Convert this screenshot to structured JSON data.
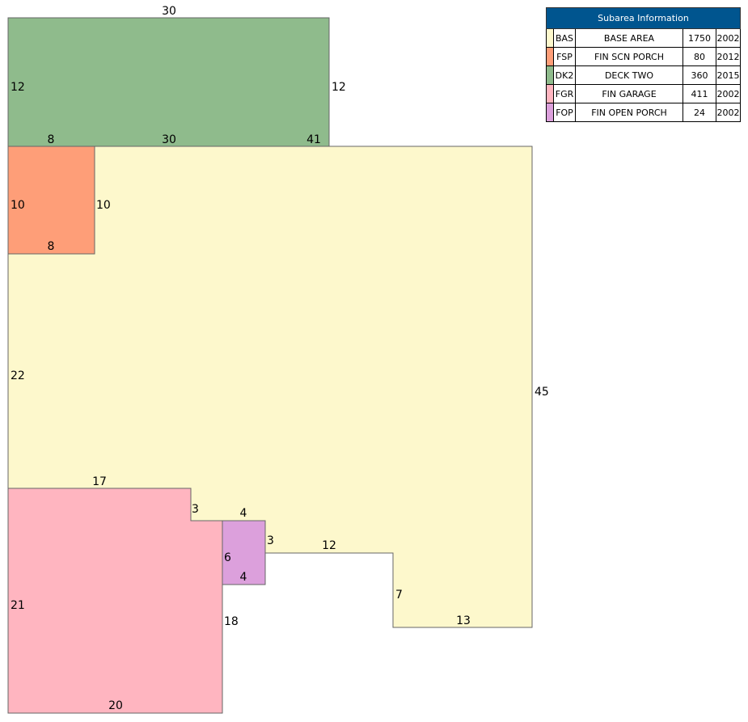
{
  "legend": {
    "title": "Subarea Information",
    "rows": [
      {
        "code": "BAS",
        "name": "BASE AREA",
        "area": "1750",
        "year": "2002",
        "color": "#fdf8cc"
      },
      {
        "code": "FSP",
        "name": "FIN SCN PORCH",
        "area": "80",
        "year": "2012",
        "color": "#fe9e78"
      },
      {
        "code": "DK2",
        "name": "DECK TWO",
        "area": "360",
        "year": "2015",
        "color": "#8fbb8c"
      },
      {
        "code": "FGR",
        "name": "FIN GARAGE",
        "area": "411",
        "year": "2002",
        "color": "#ffb5c0"
      },
      {
        "code": "FOP",
        "name": "FIN OPEN PORCH",
        "area": "24",
        "year": "2002",
        "color": "#dca0dc"
      }
    ]
  },
  "dimensions": {
    "dk2": [
      "30",
      "12",
      "12",
      "30"
    ],
    "fsp": [
      "8",
      "10",
      "10",
      "8"
    ],
    "bas": [
      "41",
      "22",
      "45",
      "17",
      "3",
      "4",
      "3",
      "12",
      "7",
      "13"
    ],
    "fop": [
      "6",
      "4"
    ],
    "fgr": [
      "21",
      "18",
      "20"
    ]
  }
}
